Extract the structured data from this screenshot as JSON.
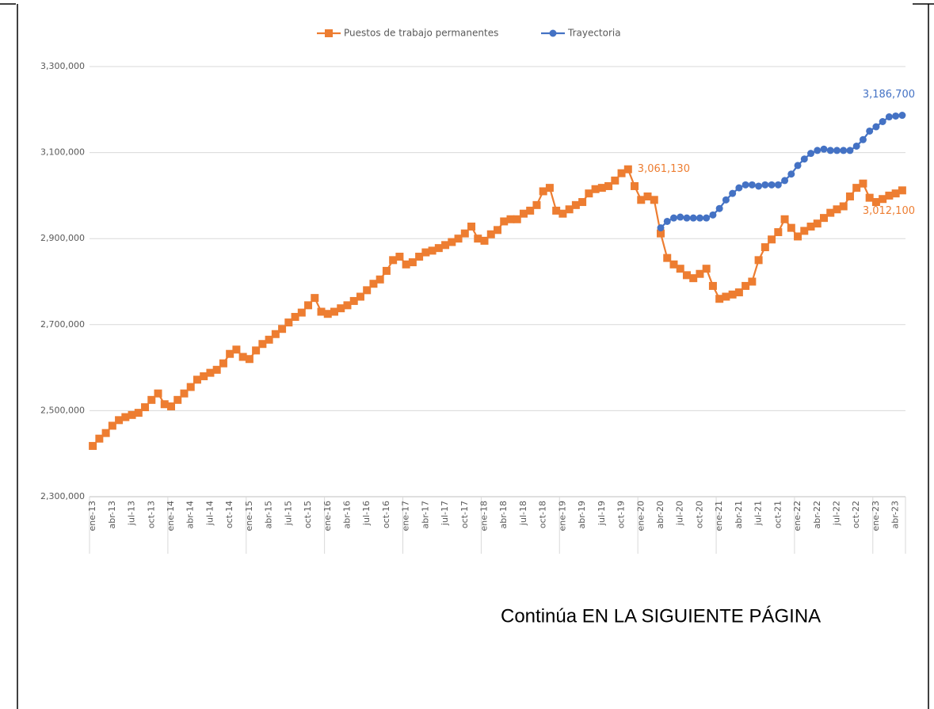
{
  "chart_data": {
    "type": "line",
    "categories": [
      "ene-13",
      null,
      null,
      "abr-13",
      null,
      null,
      "jul-13",
      null,
      null,
      "oct-13",
      null,
      null,
      "ene-14",
      null,
      null,
      "abr-14",
      null,
      null,
      "jul-14",
      null,
      null,
      "oct-14",
      null,
      null,
      "ene-15",
      null,
      null,
      "abr-15",
      null,
      null,
      "jul-15",
      null,
      null,
      "oct-15",
      null,
      null,
      "ene-16",
      null,
      null,
      "abr-16",
      null,
      null,
      "jul-16",
      null,
      null,
      "oct-16",
      null,
      null,
      "ene-17",
      null,
      null,
      "abr-17",
      null,
      null,
      "jul-17",
      null,
      null,
      "oct-17",
      null,
      null,
      "ene-18",
      null,
      null,
      "abr-18",
      null,
      null,
      "jul-18",
      null,
      null,
      "oct-18",
      null,
      null,
      "ene-19",
      null,
      null,
      "abr-19",
      null,
      null,
      "jul-19",
      null,
      null,
      "oct-19",
      null,
      null,
      "ene-20",
      null,
      null,
      "abr-20",
      null,
      null,
      "jul-20",
      null,
      null,
      "oct-20",
      null,
      null,
      "ene-21",
      null,
      null,
      "abr-21",
      null,
      null,
      "jul-21",
      null,
      null,
      "oct-21",
      null,
      null,
      "ene-22",
      null,
      null,
      "abr-22",
      null,
      null,
      "jul-22",
      null,
      null,
      "oct-22",
      null,
      null,
      "ene-23",
      null,
      null,
      "abr-23",
      null
    ],
    "series": [
      {
        "name": "Puestos de trabajo permanentes",
        "color": "#ed7d31",
        "marker": "square",
        "values": [
          2418000,
          2435000,
          2448000,
          2465000,
          2478000,
          2485000,
          2490000,
          2495000,
          2508000,
          2525000,
          2540000,
          2515000,
          2510000,
          2525000,
          2540000,
          2555000,
          2572000,
          2580000,
          2588000,
          2595000,
          2610000,
          2632000,
          2642000,
          2625000,
          2620000,
          2640000,
          2655000,
          2665000,
          2678000,
          2690000,
          2705000,
          2718000,
          2728000,
          2745000,
          2762000,
          2730000,
          2725000,
          2730000,
          2738000,
          2745000,
          2755000,
          2765000,
          2780000,
          2795000,
          2805000,
          2825000,
          2850000,
          2858000,
          2840000,
          2845000,
          2858000,
          2868000,
          2872000,
          2878000,
          2885000,
          2892000,
          2900000,
          2912000,
          2928000,
          2900000,
          2895000,
          2910000,
          2920000,
          2940000,
          2945000,
          2945000,
          2958000,
          2965000,
          2978000,
          3010000,
          3018000,
          2965000,
          2958000,
          2968000,
          2978000,
          2985000,
          3005000,
          3015000,
          3018000,
          3022000,
          3035000,
          3052000,
          3061130,
          3022000,
          2990000,
          2998000,
          2990000,
          2912000,
          2855000,
          2840000,
          2830000,
          2815000,
          2808000,
          2818000,
          2830000,
          2790000,
          2760000,
          2765000,
          2770000,
          2775000,
          2790000,
          2800000,
          2850000,
          2880000,
          2898000,
          2915000,
          2945000,
          2925000,
          2905000,
          2918000,
          2928000,
          2935000,
          2948000,
          2960000,
          2968000,
          2975000,
          2998000,
          3018000,
          3028000,
          2995000,
          2985000,
          2992000,
          3000000,
          3005000,
          3012100
        ],
        "value_labels": [
          null,
          null,
          null,
          null,
          null,
          null,
          null,
          null,
          null,
          null,
          null,
          null,
          null,
          null,
          null,
          null,
          null,
          null,
          null,
          null,
          null,
          null,
          null,
          null,
          null,
          null,
          null,
          null,
          null,
          null,
          null,
          null,
          null,
          null,
          null,
          null,
          null,
          null,
          null,
          null,
          null,
          null,
          null,
          null,
          null,
          null,
          null,
          null,
          null,
          null,
          null,
          null,
          null,
          null,
          null,
          null,
          null,
          null,
          null,
          null,
          null,
          null,
          null,
          null,
          null,
          null,
          null,
          null,
          null,
          null,
          null,
          null,
          null,
          null,
          null,
          null,
          null,
          null,
          null,
          null,
          null,
          null,
          "3,061,130",
          null,
          null,
          null,
          null,
          null,
          null,
          null,
          null,
          null,
          null,
          null,
          null,
          null,
          null,
          null,
          null,
          null,
          null,
          null,
          null,
          null,
          null,
          null,
          null,
          null,
          null,
          null,
          null,
          null,
          null,
          null,
          null,
          null,
          null,
          null,
          null,
          null,
          null,
          null,
          null,
          null,
          "3,012,100"
        ]
      },
      {
        "name": "Trayectoria",
        "color": "#4472c4",
        "marker": "circle",
        "values": [
          null,
          null,
          null,
          null,
          null,
          null,
          null,
          null,
          null,
          null,
          null,
          null,
          null,
          null,
          null,
          null,
          null,
          null,
          null,
          null,
          null,
          null,
          null,
          null,
          null,
          null,
          null,
          null,
          null,
          null,
          null,
          null,
          null,
          null,
          null,
          null,
          null,
          null,
          null,
          null,
          null,
          null,
          null,
          null,
          null,
          null,
          null,
          null,
          null,
          null,
          null,
          null,
          null,
          null,
          null,
          null,
          null,
          null,
          null,
          null,
          null,
          null,
          null,
          null,
          null,
          null,
          null,
          null,
          null,
          null,
          null,
          null,
          null,
          null,
          null,
          null,
          null,
          null,
          null,
          null,
          null,
          null,
          null,
          null,
          null,
          null,
          null,
          2925000,
          2940000,
          2948000,
          2950000,
          2948000,
          2948000,
          2948000,
          2948000,
          2955000,
          2970000,
          2990000,
          3005000,
          3018000,
          3025000,
          3025000,
          3022000,
          3025000,
          3025000,
          3025000,
          3035000,
          3050000,
          3070000,
          3085000,
          3098000,
          3105000,
          3108000,
          3105000,
          3105000,
          3105000,
          3105000,
          3115000,
          3130000,
          3150000,
          3160000,
          3172000,
          3183000,
          3185000,
          3186700
        ],
        "value_labels": [
          null,
          null,
          null,
          null,
          null,
          null,
          null,
          null,
          null,
          null,
          null,
          null,
          null,
          null,
          null,
          null,
          null,
          null,
          null,
          null,
          null,
          null,
          null,
          null,
          null,
          null,
          null,
          null,
          null,
          null,
          null,
          null,
          null,
          null,
          null,
          null,
          null,
          null,
          null,
          null,
          null,
          null,
          null,
          null,
          null,
          null,
          null,
          null,
          null,
          null,
          null,
          null,
          null,
          null,
          null,
          null,
          null,
          null,
          null,
          null,
          null,
          null,
          null,
          null,
          null,
          null,
          null,
          null,
          null,
          null,
          null,
          null,
          null,
          null,
          null,
          null,
          null,
          null,
          null,
          null,
          null,
          null,
          null,
          null,
          null,
          null,
          null,
          null,
          null,
          null,
          null,
          null,
          null,
          null,
          null,
          null,
          null,
          null,
          null,
          null,
          null,
          null,
          null,
          null,
          null,
          null,
          null,
          null,
          null,
          null,
          null,
          null,
          null,
          null,
          null,
          null,
          null,
          null,
          null,
          null,
          null,
          null,
          null,
          null,
          "3,186,700"
        ]
      }
    ],
    "ylim": [
      2300000,
      3300000
    ],
    "yticks": [
      {
        "value": 2300000,
        "label": "2,300,000"
      },
      {
        "value": 2500000,
        "label": "2,500,000"
      },
      {
        "value": 2700000,
        "label": "2,700,000"
      },
      {
        "value": 2900000,
        "label": "2,900,000"
      },
      {
        "value": 3100000,
        "label": "3,100,000"
      },
      {
        "value": 3300000,
        "label": "3,300,000"
      }
    ],
    "grid": true,
    "legend": "top"
  },
  "page_note": "Continúa EN LA SIGUIENTE PÁGINA"
}
